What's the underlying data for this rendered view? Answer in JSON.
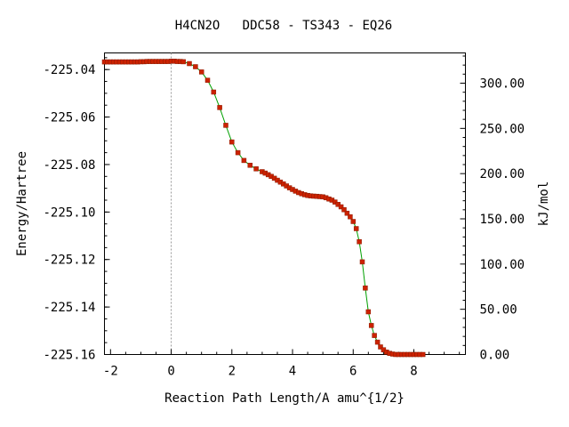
{
  "chart_data": {
    "type": "line",
    "title": "H4CN2O   DDC58 - TS343 - EQ26",
    "xlabel": "Reaction Path Length/A amu^{1/2}",
    "ylabel": "Energy/Hartree",
    "y2label": "kJ/mol",
    "xlim": [
      -2.2,
      9.7
    ],
    "ylim": [
      -225.16,
      -225.033
    ],
    "y2lim": [
      0,
      333.44
    ],
    "xticks": [
      -2,
      0,
      2,
      4,
      6,
      8
    ],
    "xtick_labels": [
      "-2",
      "0",
      "2",
      "4",
      "6",
      "8"
    ],
    "yticks": [
      -225.04,
      -225.06,
      -225.08,
      -225.1,
      -225.12,
      -225.14,
      -225.16
    ],
    "ytick_labels": [
      "-225.04",
      "-225.06",
      "-225.08",
      "-225.10",
      "-225.12",
      "-225.14",
      "-225.16"
    ],
    "y2ticks": [
      0,
      50,
      100,
      150,
      200,
      250,
      300
    ],
    "y2tick_labels": [
      "0.00",
      "50.00",
      "100.00",
      "150.00",
      "200.00",
      "250.00",
      "300.00"
    ],
    "ts_marker_x": 0,
    "grid": false,
    "colors": {
      "line": "#00a000",
      "marker": "#cc2200",
      "ts_line": "#999999"
    },
    "series": [
      {
        "x": [
          -2.2,
          -2.1,
          -2.0,
          -1.9,
          -1.8,
          -1.7,
          -1.6,
          -1.5,
          -1.4,
          -1.3,
          -1.2,
          -1.1,
          -1.0,
          -0.9,
          -0.8,
          -0.7,
          -0.6,
          -0.5,
          -0.4,
          -0.3,
          -0.2,
          -0.1,
          0.0,
          0.1,
          0.2,
          0.3,
          0.4,
          0.6,
          0.8,
          1.0,
          1.2,
          1.4,
          1.6,
          1.8,
          2.0,
          2.2,
          2.4,
          2.6,
          2.8,
          3.0,
          3.1,
          3.2,
          3.3,
          3.4,
          3.5,
          3.6,
          3.7,
          3.8,
          3.9,
          4.0,
          4.1,
          4.2,
          4.3,
          4.4,
          4.5,
          4.6,
          4.7,
          4.8,
          4.9,
          5.0,
          5.1,
          5.2,
          5.3,
          5.4,
          5.5,
          5.6,
          5.7,
          5.8,
          5.9,
          6.0,
          6.1,
          6.2,
          6.3,
          6.4,
          6.5,
          6.6,
          6.7,
          6.8,
          6.9,
          7.0,
          7.1,
          7.2,
          7.3,
          7.4,
          7.5,
          7.6,
          7.7,
          7.8,
          7.9,
          8.0,
          8.1,
          8.2,
          8.3
        ],
        "y": [
          -225.0368,
          -225.0368,
          -225.0368,
          -225.0368,
          -225.0368,
          -225.0368,
          -225.0368,
          -225.0368,
          -225.0368,
          -225.0368,
          -225.0368,
          -225.0368,
          -225.0367,
          -225.0367,
          -225.0366,
          -225.0366,
          -225.0366,
          -225.0366,
          -225.0366,
          -225.0366,
          -225.0366,
          -225.0366,
          -225.0365,
          -225.0365,
          -225.0366,
          -225.0366,
          -225.0367,
          -225.0375,
          -225.0388,
          -225.041,
          -225.0445,
          -225.0495,
          -225.056,
          -225.0635,
          -225.0705,
          -225.075,
          -225.0783,
          -225.0803,
          -225.0818,
          -225.083,
          -225.0836,
          -225.0843,
          -225.085,
          -225.0858,
          -225.0866,
          -225.0874,
          -225.0882,
          -225.089,
          -225.0898,
          -225.0905,
          -225.0912,
          -225.0918,
          -225.0923,
          -225.0927,
          -225.093,
          -225.0932,
          -225.0933,
          -225.0934,
          -225.0935,
          -225.0936,
          -225.094,
          -225.0945,
          -225.095,
          -225.0958,
          -225.0968,
          -225.0978,
          -225.099,
          -225.1005,
          -225.102,
          -225.104,
          -225.107,
          -225.1125,
          -225.121,
          -225.132,
          -225.142,
          -225.1478,
          -225.152,
          -225.1548,
          -225.1568,
          -225.158,
          -225.159,
          -225.1595,
          -225.1598,
          -225.16,
          -225.16,
          -225.16,
          -225.16,
          -225.16,
          -225.16,
          -225.16,
          -225.16,
          -225.16,
          -225.16
        ]
      }
    ]
  }
}
